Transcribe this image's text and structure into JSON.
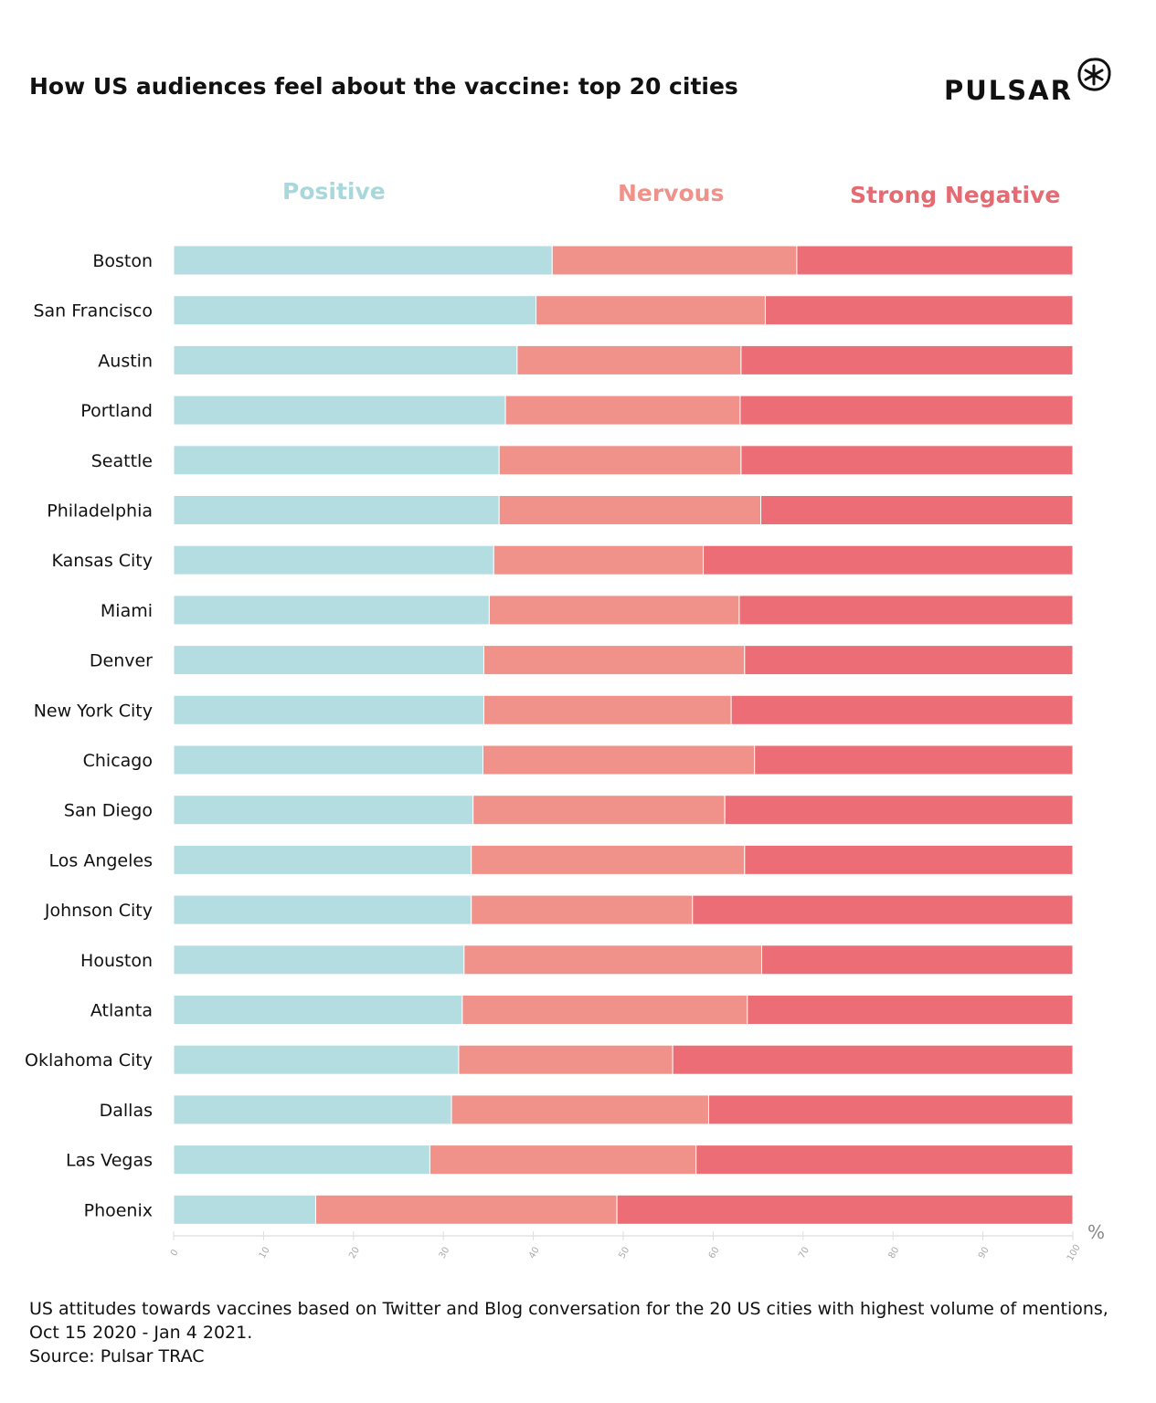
{
  "title": "How US audiences feel about the vaccine: top 20 cities",
  "logo": {
    "text": "PULSAR"
  },
  "footnote": [
    "US attitudes towards vaccines based on Twitter and Blog conversation for the 20 US cities with highest volume of mentions,",
    "Oct 15 2020 - Jan 4 2021.",
    "Source: Pulsar TRAC"
  ],
  "chart_data": {
    "type": "bar",
    "orientation": "horizontal",
    "stacked": true,
    "title": "How US audiences feel about the vaccine: top 20 cities",
    "xlabel": "%",
    "xlim": [
      0,
      100
    ],
    "xticks": [
      "0",
      "10",
      "20",
      "30",
      "40",
      "50",
      "60",
      "70",
      "80",
      "90",
      "100"
    ],
    "legend": "top",
    "categories": [
      "Boston",
      "San Francisco",
      "Austin",
      "Portland",
      "Seattle",
      "Philadelphia",
      "Kansas City",
      "Miami",
      "Denver",
      "New York City",
      "Chicago",
      "San Diego",
      "Los Angeles",
      "Johnson City",
      "Houston",
      "Atlanta",
      "Oklahoma City",
      "Dallas",
      "Las Vegas",
      "Phoenix"
    ],
    "series": [
      {
        "name": "Positive",
        "color": "#b3dde0",
        "values": [
          42.1,
          40.3,
          38.2,
          36.9,
          36.2,
          36.2,
          35.6,
          35.1,
          34.5,
          34.5,
          34.4,
          33.3,
          33.1,
          33.1,
          32.3,
          32.1,
          31.7,
          30.9,
          28.5,
          15.8
        ]
      },
      {
        "name": "Nervous",
        "color": "#f1928a",
        "values": [
          27.2,
          25.5,
          24.9,
          26.1,
          26.9,
          29.1,
          23.3,
          27.8,
          29.0,
          27.5,
          30.2,
          28.0,
          30.4,
          24.6,
          33.1,
          31.7,
          23.8,
          28.6,
          29.6,
          33.5
        ]
      },
      {
        "name": "Strong Negative",
        "color": "#ec6d75",
        "values": [
          30.7,
          34.2,
          36.9,
          37.0,
          36.9,
          34.7,
          41.1,
          37.1,
          36.5,
          38.0,
          35.4,
          38.7,
          36.5,
          42.3,
          34.6,
          36.2,
          44.5,
          40.5,
          41.9,
          50.7
        ]
      }
    ]
  }
}
